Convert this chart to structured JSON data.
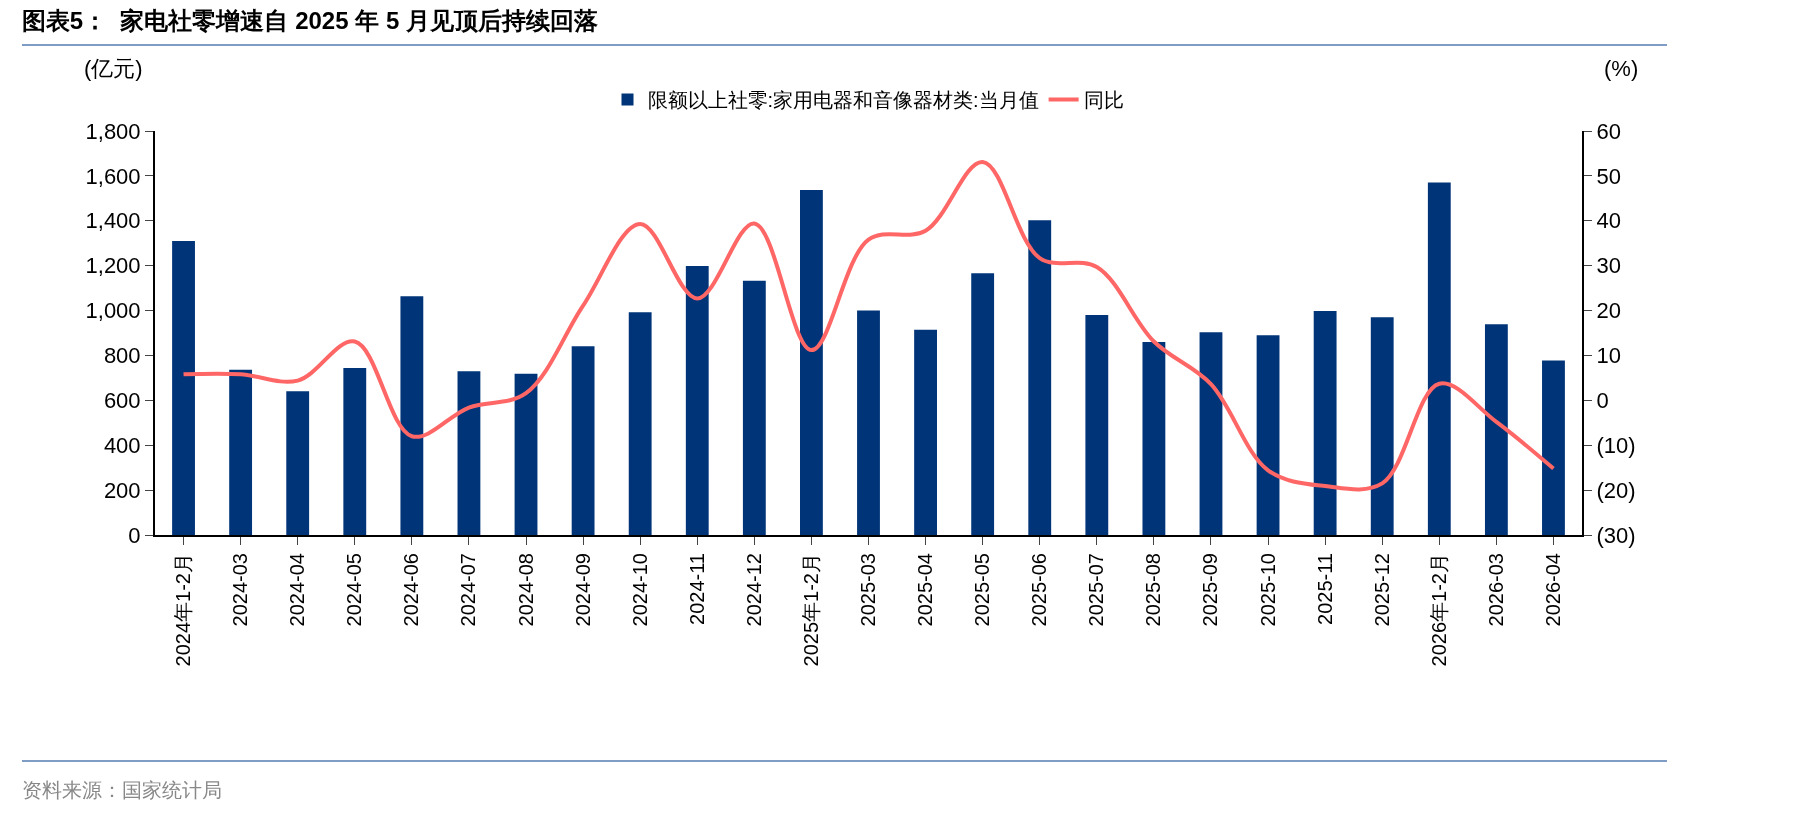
{
  "chart_data": {
    "type": "bar",
    "title": "图表5：  家电社零增速自 2025 年 5 月见顶后持续回落",
    "categories": [
      "2024年1-2月",
      "2024-03",
      "2024-04",
      "2024-05",
      "2024-06",
      "2024-07",
      "2024-08",
      "2024-09",
      "2024-10",
      "2024-11",
      "2024-12",
      "2025年1-2月",
      "2025-03",
      "2025-04",
      "2025-05",
      "2025-06",
      "2025-07",
      "2025-08",
      "2025-09",
      "2025-10",
      "2025-11",
      "2025-12",
      "2026年1-2月",
      "2026-03",
      "2026-04"
    ],
    "series": [
      {
        "name": "限额以上社零:家用电器和音像器材类:当月值",
        "color": "#003478",
        "values": [
          1310,
          736,
          640,
          744,
          1064,
          730,
          718,
          841,
          992,
          1199,
          1133,
          1537,
          1000,
          914,
          1166,
          1402,
          980,
          860,
          903,
          890,
          998,
          970,
          1570,
          939,
          777
        ]
      },
      {
        "name": "同比",
        "type": "line",
        "axis": "y2",
        "color": "#ff6666",
        "values": [
          5.8,
          5.8,
          4.4,
          13.1,
          -8.0,
          -1.6,
          1.6,
          21.1,
          39.3,
          22.7,
          39.4,
          11.2,
          35.8,
          37.8,
          53.1,
          31.7,
          29.7,
          13.1,
          3.6,
          -15.6,
          -19.1,
          -18.5,
          3.7,
          -4.8,
          -15.2
        ]
      }
    ],
    "ylim": [
      0,
      1800
    ],
    "yticks": [
      0,
      {
        "value": 200,
        "label": "200"
      },
      {
        "value": 400,
        "label": "400"
      },
      600,
      800,
      {
        "value": 1000,
        "label": "1,000"
      },
      {
        "value": 1200,
        "label": "1,200"
      },
      {
        "value": 1400,
        "label": "1,400"
      },
      {
        "value": 1600,
        "label": "1,600"
      },
      {
        "value": 1800,
        "label": "1,800"
      }
    ],
    "y2lim": [
      -30,
      60
    ],
    "y2ticks": [
      {
        "value": -30,
        "label": "(30)"
      },
      {
        "value": -20,
        "label": "(20)"
      },
      {
        "value": -10,
        "label": "(10)"
      },
      0,
      10,
      20,
      30,
      40,
      50,
      60
    ],
    "grid": false,
    "legend": "top",
    "line_style": "solid",
    "marker": "none",
    "annotations": [
      "(亿元)",
      "(%)",
      "资料来源：国家统计局"
    ]
  }
}
